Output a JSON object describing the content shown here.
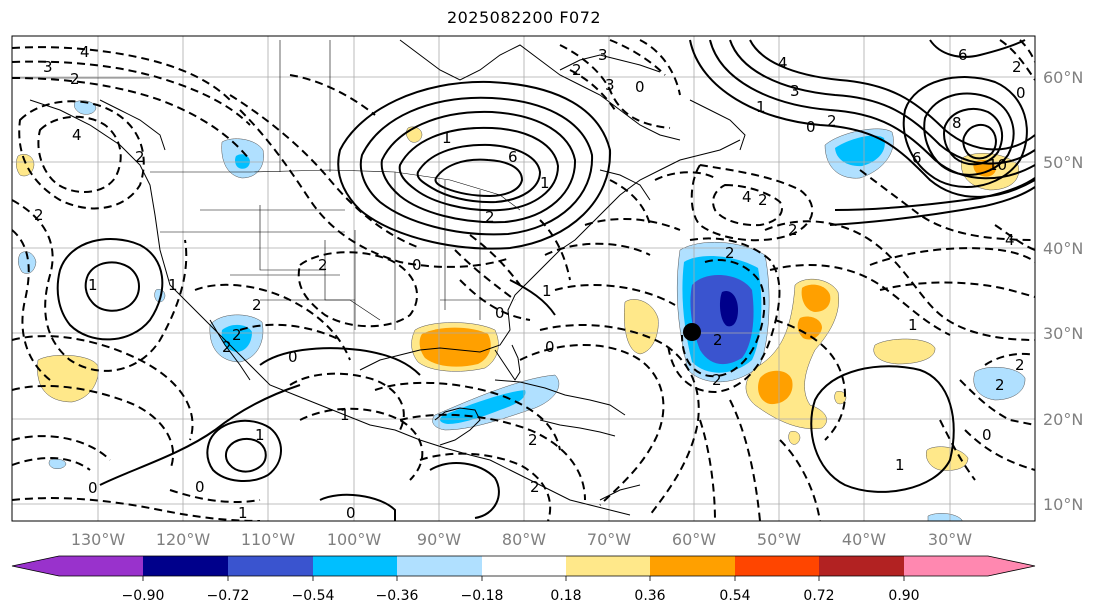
{
  "title": "2025082200 F072",
  "lat_labels": [
    "60°N",
    "50°N",
    "40°N",
    "30°N",
    "20°N",
    "10°N"
  ],
  "lon_labels": [
    "130°W",
    "120°W",
    "110°W",
    "100°W",
    "90°W",
    "80°W",
    "70°W",
    "60°W",
    "50°W",
    "40°W",
    "30°W"
  ],
  "colorbar": {
    "ticks": [
      "−0.90",
      "−0.72",
      "−0.54",
      "−0.36",
      "−0.18",
      "0.18",
      "0.36",
      "0.54",
      "0.72",
      "0.90"
    ],
    "colors": [
      "#9932CC",
      "#00008B",
      "#3A54CF",
      "#00BFFF",
      "#B0E0FF",
      "#FFFFFF",
      "#FFE88A",
      "#FFA000",
      "#FF4500",
      "#B22222",
      "#FF88B0"
    ]
  },
  "contour_labels": {
    "l1": "3",
    "l2": "4",
    "l3": "2",
    "l4": "3",
    "l5": "2",
    "l6": "3",
    "l7": "0",
    "l8": "4",
    "l9": "3",
    "l10": "6",
    "l11": "8",
    "l12": "10",
    "l13": "6",
    "l14": "4",
    "l15": "2",
    "l16": "0",
    "l17": "2",
    "l18": "1",
    "l19": "0",
    "l20": "6",
    "l21": "2",
    "l22": "1",
    "l23": "2",
    "l24": "4",
    "l25": "2",
    "l26": "2",
    "l27": "0",
    "l28": "2",
    "l29": "2",
    "l30": "1",
    "l31": "1",
    "l32": "2",
    "l33": "2",
    "l34": "0",
    "l35": "1",
    "l36": "2",
    "l37": "0",
    "l38": "2",
    "l39": "1",
    "l40": "2",
    "l41": "2",
    "l42": "0",
    "l43": "2",
    "l44": "4",
    "l45": "1",
    "l46": "1",
    "l47": "0",
    "l48": "1",
    "l49": "0",
    "l50": "0",
    "l51": "1",
    "l52": "0",
    "l53": "2",
    "l54": "2",
    "l55": "1",
    "l56": "2"
  }
}
